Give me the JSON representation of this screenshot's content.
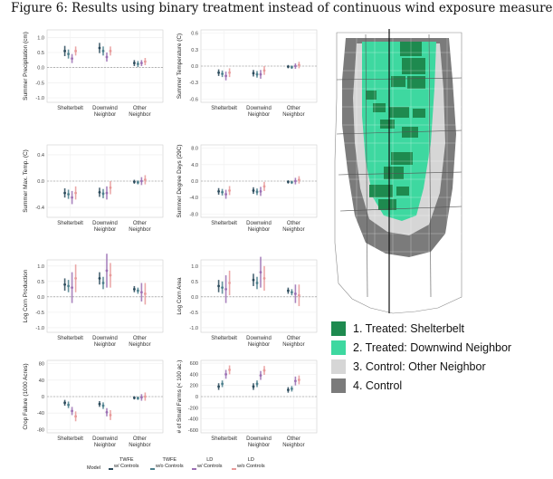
{
  "figure": {
    "title": "Figure 6: Results using binary treatment instead of continuous wind exposure measure"
  },
  "colors": {
    "twfe_controls": "#2b4a5b",
    "twfe_no_controls": "#4b7f8c",
    "ld_controls": "#9b6fb3",
    "ld_no_controls": "#e89a9a",
    "treated_shelterbelt": "#1e8a4f",
    "treated_downwind": "#3ed8a0",
    "control_other": "#d6d6d6",
    "control": "#7b7b7b"
  },
  "chart_data": [
    {
      "type": "scatter",
      "ylabel": "Summer Precipitation (cm)",
      "categories": [
        "Shelterbelt",
        "Downwind\nNeighbor",
        "Other\nNeighbor"
      ],
      "yticks": [
        -1.0,
        -0.5,
        0.0,
        0.5,
        1.0
      ],
      "yticklabels": [
        "-1.0",
        "-0.5",
        "0.0",
        "0.5",
        "1.0"
      ],
      "ylim": [
        -1.15,
        1.25
      ],
      "series": [
        {
          "name": "TWFE w/ Controls",
          "values": [
            0.55,
            0.65,
            0.15
          ],
          "low": [
            0.38,
            0.48,
            0.05
          ],
          "high": [
            0.72,
            0.82,
            0.25
          ]
        },
        {
          "name": "TWFE w/o Controls",
          "values": [
            0.45,
            0.55,
            0.12
          ],
          "low": [
            0.3,
            0.4,
            0.02
          ],
          "high": [
            0.6,
            0.7,
            0.22
          ]
        },
        {
          "name": "LD w/ Controls",
          "values": [
            0.3,
            0.35,
            0.15
          ],
          "low": [
            0.15,
            0.2,
            0.05
          ],
          "high": [
            0.45,
            0.5,
            0.25
          ]
        },
        {
          "name": "LD w/o Controls",
          "values": [
            0.55,
            0.55,
            0.2
          ],
          "low": [
            0.4,
            0.4,
            0.08
          ],
          "high": [
            0.7,
            0.7,
            0.32
          ]
        }
      ]
    },
    {
      "type": "scatter",
      "ylabel": "Summer Temperature (C)",
      "categories": [
        "Shelterbelt",
        "Downwind\nNeighbor",
        "Other\nNeighbor"
      ],
      "yticks": [
        -0.6,
        -0.3,
        0.0,
        0.3,
        0.6
      ],
      "yticklabels": [
        "-0.6",
        "-0.3",
        "0.0",
        "0.3",
        "0.6"
      ],
      "ylim": [
        -0.66,
        0.66
      ],
      "series": [
        {
          "name": "TWFE w/ Controls",
          "values": [
            -0.12,
            -0.13,
            -0.01
          ],
          "low": [
            -0.18,
            -0.19,
            -0.04
          ],
          "high": [
            -0.06,
            -0.07,
            0.02
          ]
        },
        {
          "name": "TWFE w/o Controls",
          "values": [
            -0.14,
            -0.15,
            -0.02
          ],
          "low": [
            -0.2,
            -0.21,
            -0.05
          ],
          "high": [
            -0.08,
            -0.09,
            0.01
          ]
        },
        {
          "name": "LD w/ Controls",
          "values": [
            -0.18,
            -0.15,
            0.0
          ],
          "low": [
            -0.26,
            -0.23,
            -0.05
          ],
          "high": [
            -0.1,
            -0.07,
            0.05
          ]
        },
        {
          "name": "LD w/o Controls",
          "values": [
            -0.12,
            -0.08,
            0.02
          ],
          "low": [
            -0.2,
            -0.16,
            -0.04
          ],
          "high": [
            -0.04,
            0.0,
            0.08
          ]
        }
      ]
    },
    {
      "type": "scatter",
      "ylabel": "Summer Max. Temp. (C)",
      "categories": [
        "Shelterbelt",
        "Downwind\nNeighbor",
        "Other\nNeighbor"
      ],
      "yticks": [
        -0.4,
        0.0,
        0.4
      ],
      "yticklabels": [
        "-0.4",
        "0.0",
        "0.4"
      ],
      "ylim": [
        -0.55,
        0.55
      ],
      "series": [
        {
          "name": "TWFE w/ Controls",
          "values": [
            -0.18,
            -0.17,
            -0.01
          ],
          "low": [
            -0.25,
            -0.24,
            -0.04
          ],
          "high": [
            -0.11,
            -0.1,
            0.02
          ]
        },
        {
          "name": "TWFE w/o Controls",
          "values": [
            -0.2,
            -0.19,
            -0.02
          ],
          "low": [
            -0.27,
            -0.26,
            -0.05
          ],
          "high": [
            -0.13,
            -0.12,
            0.01
          ]
        },
        {
          "name": "LD w/ Controls",
          "values": [
            -0.25,
            -0.18,
            0.0
          ],
          "low": [
            -0.35,
            -0.28,
            -0.06
          ],
          "high": [
            -0.15,
            -0.08,
            0.06
          ]
        },
        {
          "name": "LD w/o Controls",
          "values": [
            -0.18,
            -0.1,
            0.02
          ],
          "low": [
            -0.28,
            -0.2,
            -0.05
          ],
          "high": [
            -0.08,
            0.0,
            0.09
          ]
        }
      ]
    },
    {
      "type": "scatter",
      "ylabel": "Summer Degree Days (29C)",
      "categories": [
        "Shelterbelt",
        "Downwind\nNeighbor",
        "Other\nNeighbor"
      ],
      "yticks": [
        -8.0,
        -4.0,
        0.0,
        4.0,
        8.0
      ],
      "yticklabels": [
        "-8.0",
        "-4.0",
        "0.0",
        "4.0",
        "8.0"
      ],
      "ylim": [
        -8.8,
        8.8
      ],
      "series": [
        {
          "name": "TWFE w/ Controls",
          "values": [
            -2.5,
            -2.3,
            -0.2
          ],
          "low": [
            -3.3,
            -3.1,
            -0.6
          ],
          "high": [
            -1.7,
            -1.5,
            0.2
          ]
        },
        {
          "name": "TWFE w/o Controls",
          "values": [
            -2.7,
            -2.6,
            -0.3
          ],
          "low": [
            -3.5,
            -3.4,
            -0.7
          ],
          "high": [
            -1.9,
            -1.8,
            0.1
          ]
        },
        {
          "name": "LD w/ Controls",
          "values": [
            -3.2,
            -2.5,
            0.0
          ],
          "low": [
            -4.3,
            -3.6,
            -0.8
          ],
          "high": [
            -2.1,
            -1.4,
            0.8
          ]
        },
        {
          "name": "LD w/o Controls",
          "values": [
            -2.3,
            -1.3,
            0.3
          ],
          "low": [
            -3.4,
            -2.4,
            -0.6
          ],
          "high": [
            -1.2,
            -0.2,
            1.2
          ]
        }
      ]
    },
    {
      "type": "scatter",
      "ylabel": "Log Corn Production",
      "categories": [
        "Shelterbelt",
        "Downwind\nNeighbor",
        "Other\nNeighbor"
      ],
      "yticks": [
        -1.0,
        -0.5,
        0.0,
        0.5,
        1.0
      ],
      "yticklabels": [
        "-1.0",
        "-0.5",
        "0.0",
        "0.5",
        "1.0"
      ],
      "ylim": [
        -1.15,
        1.2
      ],
      "series": [
        {
          "name": "TWFE w/ Controls",
          "values": [
            0.4,
            0.6,
            0.25
          ],
          "low": [
            0.2,
            0.4,
            0.15
          ],
          "high": [
            0.6,
            0.8,
            0.35
          ]
        },
        {
          "name": "TWFE w/o Controls",
          "values": [
            0.35,
            0.45,
            0.2
          ],
          "low": [
            0.15,
            0.25,
            0.1
          ],
          "high": [
            0.55,
            0.65,
            0.3
          ]
        },
        {
          "name": "LD w/ Controls",
          "values": [
            0.3,
            0.85,
            0.15
          ],
          "low": [
            -0.2,
            0.3,
            -0.15
          ],
          "high": [
            0.8,
            1.4,
            0.45
          ]
        },
        {
          "name": "LD w/o Controls",
          "values": [
            0.6,
            0.7,
            0.1
          ],
          "low": [
            0.15,
            0.3,
            -0.25
          ],
          "high": [
            1.05,
            1.1,
            0.45
          ]
        }
      ]
    },
    {
      "type": "scatter",
      "ylabel": "Log Corn Area",
      "categories": [
        "Shelterbelt",
        "Downwind\nNeighbor",
        "Other\nNeighbor"
      ],
      "yticks": [
        -1.0,
        -0.5,
        0.0,
        0.5,
        1.0
      ],
      "yticklabels": [
        "-1.0",
        "-0.5",
        "0.0",
        "0.5",
        "1.0"
      ],
      "ylim": [
        -1.15,
        1.2
      ],
      "series": [
        {
          "name": "TWFE w/ Controls",
          "values": [
            0.35,
            0.55,
            0.2
          ],
          "low": [
            0.15,
            0.35,
            0.1
          ],
          "high": [
            0.55,
            0.75,
            0.3
          ]
        },
        {
          "name": "TWFE w/o Controls",
          "values": [
            0.3,
            0.45,
            0.15
          ],
          "low": [
            0.1,
            0.25,
            0.05
          ],
          "high": [
            0.5,
            0.65,
            0.25
          ]
        },
        {
          "name": "LD w/ Controls",
          "values": [
            0.25,
            0.8,
            0.1
          ],
          "low": [
            -0.2,
            0.3,
            -0.2
          ],
          "high": [
            0.7,
            1.3,
            0.4
          ]
        },
        {
          "name": "LD w/o Controls",
          "values": [
            0.45,
            0.6,
            0.05
          ],
          "low": [
            0.05,
            0.2,
            -0.3
          ],
          "high": [
            0.85,
            1.0,
            0.4
          ]
        }
      ]
    },
    {
      "type": "scatter",
      "ylabel": "Crop Failure (1000 Acres)",
      "categories": [
        "Shelterbelt",
        "Downwind\nNeighbor",
        "Other\nNeighbor"
      ],
      "yticks": [
        -80,
        -40,
        0,
        40,
        80
      ],
      "yticklabels": [
        "-80",
        "-40",
        "0",
        "40",
        "80"
      ],
      "ylim": [
        -88,
        88
      ],
      "series": [
        {
          "name": "TWFE w/ Controls",
          "values": [
            -15,
            -18,
            -3
          ],
          "low": [
            -22,
            -25,
            -7
          ],
          "high": [
            -8,
            -11,
            1
          ]
        },
        {
          "name": "TWFE w/o Controls",
          "values": [
            -20,
            -22,
            -4
          ],
          "low": [
            -28,
            -30,
            -8
          ],
          "high": [
            -12,
            -14,
            0
          ]
        },
        {
          "name": "LD w/ Controls",
          "values": [
            -35,
            -38,
            -2
          ],
          "low": [
            -45,
            -48,
            -10
          ],
          "high": [
            -25,
            -28,
            6
          ]
        },
        {
          "name": "LD w/o Controls",
          "values": [
            -48,
            -45,
            0
          ],
          "low": [
            -60,
            -57,
            -10
          ],
          "high": [
            -36,
            -33,
            10
          ]
        }
      ]
    },
    {
      "type": "scatter",
      "ylabel": "# of Small Farms (< 100 ac.)",
      "categories": [
        "Shelterbelt",
        "Downwind\nNeighbor",
        "Other\nNeighbor"
      ],
      "yticks": [
        -600,
        -400,
        -200,
        0,
        200,
        400,
        600
      ],
      "yticklabels": [
        "-600",
        "-400",
        "-200",
        "0",
        "200",
        "400",
        "600"
      ],
      "ylim": [
        -650,
        650
      ],
      "series": [
        {
          "name": "TWFE w/ Controls",
          "values": [
            180,
            180,
            120
          ],
          "low": [
            120,
            120,
            70
          ],
          "high": [
            240,
            240,
            170
          ]
        },
        {
          "name": "TWFE w/o Controls",
          "values": [
            230,
            230,
            140
          ],
          "low": [
            170,
            170,
            90
          ],
          "high": [
            290,
            290,
            190
          ]
        },
        {
          "name": "LD w/ Controls",
          "values": [
            400,
            380,
            280
          ],
          "low": [
            320,
            300,
            200
          ],
          "high": [
            480,
            460,
            360
          ]
        },
        {
          "name": "LD w/o Controls",
          "values": [
            480,
            470,
            300
          ],
          "low": [
            400,
            390,
            220
          ],
          "high": [
            560,
            550,
            380
          ]
        }
      ]
    }
  ],
  "map_legend": {
    "items": [
      {
        "label": "1. Treated: Shelterbelt",
        "color": "#1e8a4f"
      },
      {
        "label": "2. Treated: Downwind Neighbor",
        "color": "#3ed8a0"
      },
      {
        "label": "3. Control: Other Neighbor",
        "color": "#d6d6d6"
      },
      {
        "label": "4. Control",
        "color": "#7b7b7b"
      }
    ]
  },
  "model_legend": {
    "title": "Model",
    "items": [
      {
        "line1": "TWFE",
        "line2": "w/ Controls",
        "color": "#2b4a5b"
      },
      {
        "line1": "TWFE",
        "line2": "w/o Controls",
        "color": "#4b7f8c"
      },
      {
        "line1": "LD",
        "line2": "w/ Controls",
        "color": "#9b6fb3"
      },
      {
        "line1": "LD",
        "line2": "w/o Controls",
        "color": "#e89a9a"
      }
    ]
  }
}
